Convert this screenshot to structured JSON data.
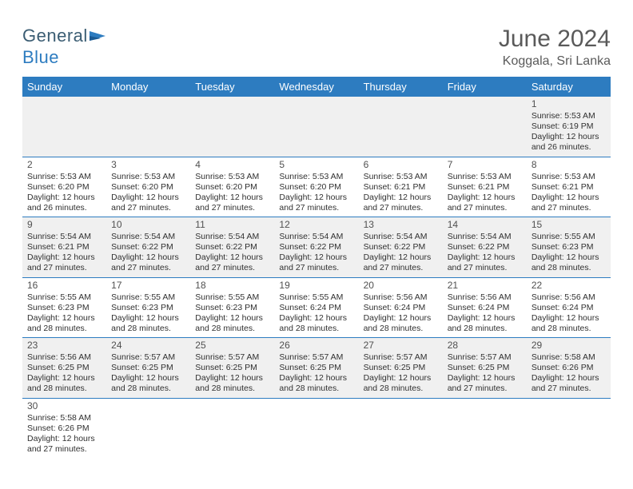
{
  "logo": {
    "general": "General",
    "blue": "Blue"
  },
  "title": "June 2024",
  "location": "Koggala, Sri Lanka",
  "colors": {
    "header_bg": "#2d7cc0",
    "header_text": "#ffffff",
    "row_odd_bg": "#f0f0f0",
    "row_even_bg": "#ffffff",
    "cell_border": "#2d7cc0",
    "title_color": "#5a5a5a",
    "text_color": "#303030"
  },
  "weekdays": [
    "Sunday",
    "Monday",
    "Tuesday",
    "Wednesday",
    "Thursday",
    "Friday",
    "Saturday"
  ],
  "weeks": [
    [
      null,
      null,
      null,
      null,
      null,
      null,
      {
        "d": "1",
        "sr": "Sunrise: 5:53 AM",
        "ss": "Sunset: 6:19 PM",
        "dl1": "Daylight: 12 hours",
        "dl2": "and 26 minutes."
      }
    ],
    [
      {
        "d": "2",
        "sr": "Sunrise: 5:53 AM",
        "ss": "Sunset: 6:20 PM",
        "dl1": "Daylight: 12 hours",
        "dl2": "and 26 minutes."
      },
      {
        "d": "3",
        "sr": "Sunrise: 5:53 AM",
        "ss": "Sunset: 6:20 PM",
        "dl1": "Daylight: 12 hours",
        "dl2": "and 27 minutes."
      },
      {
        "d": "4",
        "sr": "Sunrise: 5:53 AM",
        "ss": "Sunset: 6:20 PM",
        "dl1": "Daylight: 12 hours",
        "dl2": "and 27 minutes."
      },
      {
        "d": "5",
        "sr": "Sunrise: 5:53 AM",
        "ss": "Sunset: 6:20 PM",
        "dl1": "Daylight: 12 hours",
        "dl2": "and 27 minutes."
      },
      {
        "d": "6",
        "sr": "Sunrise: 5:53 AM",
        "ss": "Sunset: 6:21 PM",
        "dl1": "Daylight: 12 hours",
        "dl2": "and 27 minutes."
      },
      {
        "d": "7",
        "sr": "Sunrise: 5:53 AM",
        "ss": "Sunset: 6:21 PM",
        "dl1": "Daylight: 12 hours",
        "dl2": "and 27 minutes."
      },
      {
        "d": "8",
        "sr": "Sunrise: 5:53 AM",
        "ss": "Sunset: 6:21 PM",
        "dl1": "Daylight: 12 hours",
        "dl2": "and 27 minutes."
      }
    ],
    [
      {
        "d": "9",
        "sr": "Sunrise: 5:54 AM",
        "ss": "Sunset: 6:21 PM",
        "dl1": "Daylight: 12 hours",
        "dl2": "and 27 minutes."
      },
      {
        "d": "10",
        "sr": "Sunrise: 5:54 AM",
        "ss": "Sunset: 6:22 PM",
        "dl1": "Daylight: 12 hours",
        "dl2": "and 27 minutes."
      },
      {
        "d": "11",
        "sr": "Sunrise: 5:54 AM",
        "ss": "Sunset: 6:22 PM",
        "dl1": "Daylight: 12 hours",
        "dl2": "and 27 minutes."
      },
      {
        "d": "12",
        "sr": "Sunrise: 5:54 AM",
        "ss": "Sunset: 6:22 PM",
        "dl1": "Daylight: 12 hours",
        "dl2": "and 27 minutes."
      },
      {
        "d": "13",
        "sr": "Sunrise: 5:54 AM",
        "ss": "Sunset: 6:22 PM",
        "dl1": "Daylight: 12 hours",
        "dl2": "and 27 minutes."
      },
      {
        "d": "14",
        "sr": "Sunrise: 5:54 AM",
        "ss": "Sunset: 6:22 PM",
        "dl1": "Daylight: 12 hours",
        "dl2": "and 27 minutes."
      },
      {
        "d": "15",
        "sr": "Sunrise: 5:55 AM",
        "ss": "Sunset: 6:23 PM",
        "dl1": "Daylight: 12 hours",
        "dl2": "and 28 minutes."
      }
    ],
    [
      {
        "d": "16",
        "sr": "Sunrise: 5:55 AM",
        "ss": "Sunset: 6:23 PM",
        "dl1": "Daylight: 12 hours",
        "dl2": "and 28 minutes."
      },
      {
        "d": "17",
        "sr": "Sunrise: 5:55 AM",
        "ss": "Sunset: 6:23 PM",
        "dl1": "Daylight: 12 hours",
        "dl2": "and 28 minutes."
      },
      {
        "d": "18",
        "sr": "Sunrise: 5:55 AM",
        "ss": "Sunset: 6:23 PM",
        "dl1": "Daylight: 12 hours",
        "dl2": "and 28 minutes."
      },
      {
        "d": "19",
        "sr": "Sunrise: 5:55 AM",
        "ss": "Sunset: 6:24 PM",
        "dl1": "Daylight: 12 hours",
        "dl2": "and 28 minutes."
      },
      {
        "d": "20",
        "sr": "Sunrise: 5:56 AM",
        "ss": "Sunset: 6:24 PM",
        "dl1": "Daylight: 12 hours",
        "dl2": "and 28 minutes."
      },
      {
        "d": "21",
        "sr": "Sunrise: 5:56 AM",
        "ss": "Sunset: 6:24 PM",
        "dl1": "Daylight: 12 hours",
        "dl2": "and 28 minutes."
      },
      {
        "d": "22",
        "sr": "Sunrise: 5:56 AM",
        "ss": "Sunset: 6:24 PM",
        "dl1": "Daylight: 12 hours",
        "dl2": "and 28 minutes."
      }
    ],
    [
      {
        "d": "23",
        "sr": "Sunrise: 5:56 AM",
        "ss": "Sunset: 6:25 PM",
        "dl1": "Daylight: 12 hours",
        "dl2": "and 28 minutes."
      },
      {
        "d": "24",
        "sr": "Sunrise: 5:57 AM",
        "ss": "Sunset: 6:25 PM",
        "dl1": "Daylight: 12 hours",
        "dl2": "and 28 minutes."
      },
      {
        "d": "25",
        "sr": "Sunrise: 5:57 AM",
        "ss": "Sunset: 6:25 PM",
        "dl1": "Daylight: 12 hours",
        "dl2": "and 28 minutes."
      },
      {
        "d": "26",
        "sr": "Sunrise: 5:57 AM",
        "ss": "Sunset: 6:25 PM",
        "dl1": "Daylight: 12 hours",
        "dl2": "and 28 minutes."
      },
      {
        "d": "27",
        "sr": "Sunrise: 5:57 AM",
        "ss": "Sunset: 6:25 PM",
        "dl1": "Daylight: 12 hours",
        "dl2": "and 28 minutes."
      },
      {
        "d": "28",
        "sr": "Sunrise: 5:57 AM",
        "ss": "Sunset: 6:25 PM",
        "dl1": "Daylight: 12 hours",
        "dl2": "and 27 minutes."
      },
      {
        "d": "29",
        "sr": "Sunrise: 5:58 AM",
        "ss": "Sunset: 6:26 PM",
        "dl1": "Daylight: 12 hours",
        "dl2": "and 27 minutes."
      }
    ],
    [
      {
        "d": "30",
        "sr": "Sunrise: 5:58 AM",
        "ss": "Sunset: 6:26 PM",
        "dl1": "Daylight: 12 hours",
        "dl2": "and 27 minutes."
      },
      null,
      null,
      null,
      null,
      null,
      null
    ]
  ]
}
